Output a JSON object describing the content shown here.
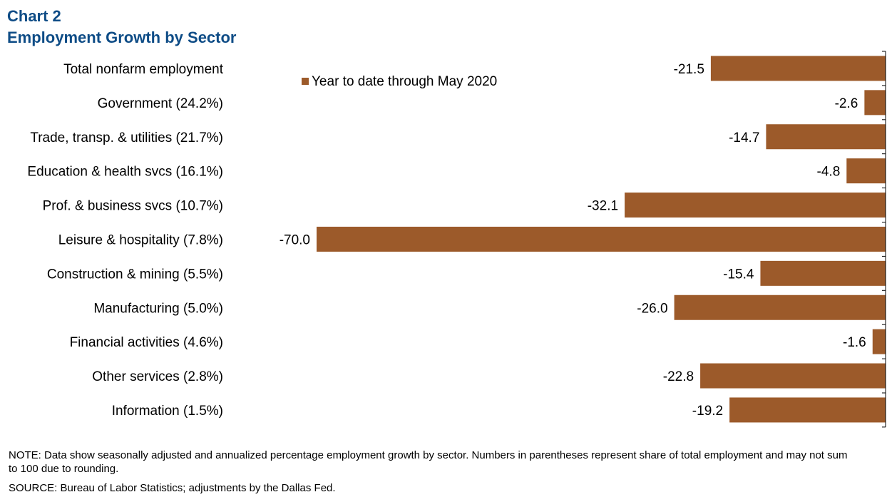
{
  "title": {
    "line1": "Chart 2",
    "line2": "Employment  Growth by Sector"
  },
  "colors": {
    "title": "#0e4c86",
    "bar": "#9c5a2a",
    "text": "#000000",
    "axis": "#000000"
  },
  "chart_data": {
    "type": "bar",
    "orientation": "horizontal",
    "categories": [
      "Total nonfarm employment",
      "Government (24.2%)",
      "Trade, transp. & utilities (21.7%)",
      "Education & health svcs (16.1%)",
      "Prof. & business svcs (10.7%)",
      "Leisure & hospitality (7.8%)",
      "Construction & mining (5.5%)",
      "Manufacturing (5.0%)",
      "Financial activities (4.6%)",
      "Other services (2.8%)",
      "Information (1.5%)"
    ],
    "series": [
      {
        "name": "Year to date through May 2020",
        "values": [
          -21.5,
          -2.6,
          -14.7,
          -4.8,
          -32.1,
          -70.0,
          -15.4,
          -26.0,
          -1.6,
          -22.8,
          -19.2
        ],
        "labels": [
          "-21.5",
          "-2.6",
          "-14.7",
          "-4.8",
          "-32.1",
          "-70.0",
          "-15.4",
          "-26.0",
          "-1.6",
          "-22.8",
          "-19.2"
        ]
      }
    ],
    "xlim": [
      -70,
      0
    ],
    "axis_position": "right",
    "grid": false,
    "legend_position": "top-left of plot area"
  },
  "notes": {
    "note": "NOTE:  Data show seasonally adjusted and annualized percentage employment growth by sector. Numbers in parentheses represent share of total employment and may not sum to 100 due to rounding.",
    "source": "SOURCE:  Bureau of Labor Statistics; adjustments  by the Dallas Fed."
  }
}
